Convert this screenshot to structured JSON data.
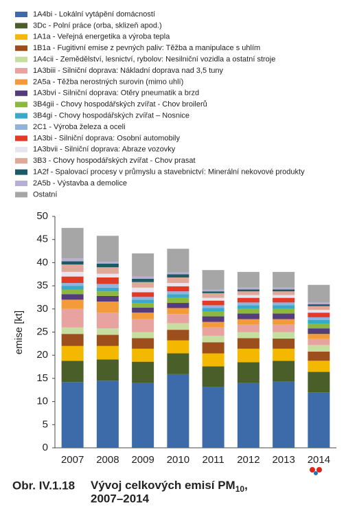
{
  "chart_data": {
    "type": "stacked_bar",
    "y_label": "emise [kt]",
    "figure_label": "Obr. IV.1.18",
    "title": {
      "main": "Vývoj celkových emisí PM",
      "subscript": "10",
      "end": ",",
      "line2": "2007–2014"
    },
    "logo": "ČHMÚ",
    "categories": [
      "2007",
      "2008",
      "2009",
      "2010",
      "2011",
      "2012",
      "2013",
      "2014"
    ],
    "ylim": [
      0,
      50
    ],
    "yticks": [
      0,
      5,
      10,
      15,
      20,
      25,
      30,
      35,
      40,
      45,
      50
    ],
    "grid": false,
    "series": [
      {
        "name": "1A4bi - Lokální vytápění domácností",
        "color": "#3d6aa8",
        "values": [
          14.2,
          14.5,
          14.0,
          15.9,
          13.2,
          14.0,
          14.3,
          12.0
        ]
      },
      {
        "name": "3Dc - Polní práce (orba, sklizeň apod.)",
        "color": "#4a5e2a",
        "values": [
          4.6,
          4.6,
          4.6,
          4.5,
          4.4,
          4.5,
          4.5,
          4.4
        ]
      },
      {
        "name": "1A1a - Veřejná energetika a výroba tepla",
        "color": "#f5b800",
        "values": [
          3.2,
          2.9,
          2.8,
          2.8,
          2.8,
          2.9,
          2.6,
          2.4
        ]
      },
      {
        "name": "1B1a - Fugitivní emise z pevných paliv: Těžba a manipulace s uhlím",
        "color": "#9c4e1c",
        "values": [
          2.6,
          2.4,
          2.3,
          2.3,
          2.4,
          2.3,
          2.2,
          2.0
        ]
      },
      {
        "name": "1A4cii - Zemědělství, lesnictví, rybolov: Nesilniční vozidla a ostatní stroje",
        "color": "#c6dea0",
        "values": [
          1.4,
          1.4,
          1.3,
          1.4,
          1.4,
          1.3,
          1.4,
          1.4
        ]
      },
      {
        "name": "1A3biii - Silniční doprava: Nákladní doprava nad 3,5 tuny",
        "color": "#e8a2a0",
        "values": [
          4.0,
          3.4,
          2.8,
          2.0,
          1.8,
          1.6,
          1.6,
          1.4
        ]
      },
      {
        "name": "2A5a - Těžba nerostných surovin (mimo uhlí)",
        "color": "#f39a3a",
        "values": [
          2.0,
          2.4,
          1.4,
          1.3,
          1.2,
          1.2,
          1.2,
          1.0
        ]
      },
      {
        "name": "1A3bvi - Silniční doprava: Otěry pneumatik a brzd",
        "color": "#553c7a",
        "values": [
          1.2,
          1.2,
          1.1,
          1.1,
          1.2,
          1.2,
          1.2,
          1.2
        ]
      },
      {
        "name": "3B4gii - Chovy hospodářských zvířat - Chov broilerů",
        "color": "#8cb83e",
        "values": [
          1.0,
          1.0,
          1.0,
          1.1,
          1.0,
          1.0,
          1.0,
          1.0
        ]
      },
      {
        "name": "3B4gi - Chovy hospodářských zvířat – Nosnice",
        "color": "#3aa8c8",
        "values": [
          0.8,
          0.8,
          0.7,
          0.8,
          0.8,
          0.8,
          0.8,
          0.8
        ]
      },
      {
        "name": "2C1 - Výroba železa a oceli",
        "color": "#92b4dc",
        "values": [
          0.6,
          0.8,
          0.6,
          0.6,
          0.6,
          0.6,
          0.6,
          0.6
        ]
      },
      {
        "name": "1A3bi - Silniční doprava: Osobní automobily",
        "color": "#e23a25",
        "values": [
          1.4,
          1.4,
          1.0,
          1.1,
          1.0,
          1.0,
          1.0,
          1.0
        ]
      },
      {
        "name": "1A3bvii - Silniční doprava: Abraze vozovky",
        "color": "#e8e4f0",
        "values": [
          1.0,
          0.8,
          1.0,
          0.7,
          0.6,
          0.6,
          0.6,
          0.6
        ]
      },
      {
        "name": "3B3 - Chovy hospodářských zvířat - Chov prasat",
        "color": "#e0a898",
        "values": [
          1.6,
          1.4,
          1.2,
          1.2,
          1.0,
          0.8,
          0.8,
          0.8
        ]
      },
      {
        "name": "1A2f - Spalovací procesy v průmyslu a stavebnictví: Minerální nekovové produkty",
        "color": "#1e5a66",
        "values": [
          0.7,
          0.8,
          0.7,
          0.7,
          0.4,
          0.4,
          0.4,
          0.4
        ]
      },
      {
        "name": "2A5b - Výstavba a demolice",
        "color": "#b8b0d4",
        "values": [
          0.6,
          0.4,
          0.5,
          0.4,
          0.4,
          0.4,
          0.4,
          0.4
        ]
      },
      {
        "name": "Ostatní",
        "color": "#a6a6a6",
        "values": [
          6.6,
          5.6,
          5.0,
          5.1,
          4.2,
          3.4,
          3.4,
          3.8
        ]
      }
    ]
  }
}
